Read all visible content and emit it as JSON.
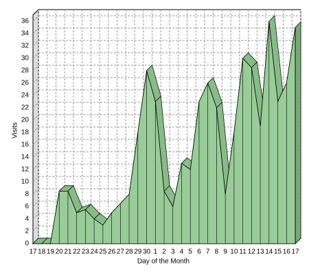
{
  "chart_data": {
    "type": "area3d",
    "x_label": "Day of the Month",
    "y_label": "Visits",
    "categories": [
      "17",
      "18",
      "19",
      "20",
      "21",
      "22",
      "23",
      "24",
      "25",
      "26",
      "27",
      "28",
      "29",
      "30",
      "1",
      "2",
      "3",
      "4",
      "5",
      "6",
      "7",
      "8",
      "9",
      "10",
      "11",
      "12",
      "13",
      "14",
      "15",
      "16",
      "17"
    ],
    "values": [
      0,
      0,
      0,
      8.5,
      8.5,
      5,
      5.5,
      4,
      3,
      5,
      6.5,
      8,
      18,
      28,
      23,
      8.5,
      6,
      13,
      12,
      23,
      26,
      22,
      8,
      18,
      30,
      28.5,
      19,
      36,
      23,
      26,
      35
    ],
    "color": "#99cc99",
    "ylim": [
      0,
      37
    ],
    "yticks": [
      0,
      2,
      4,
      6,
      8,
      10,
      12,
      14,
      16,
      18,
      20,
      22,
      24,
      26,
      28,
      30,
      32,
      34,
      36
    ],
    "grid": true
  }
}
